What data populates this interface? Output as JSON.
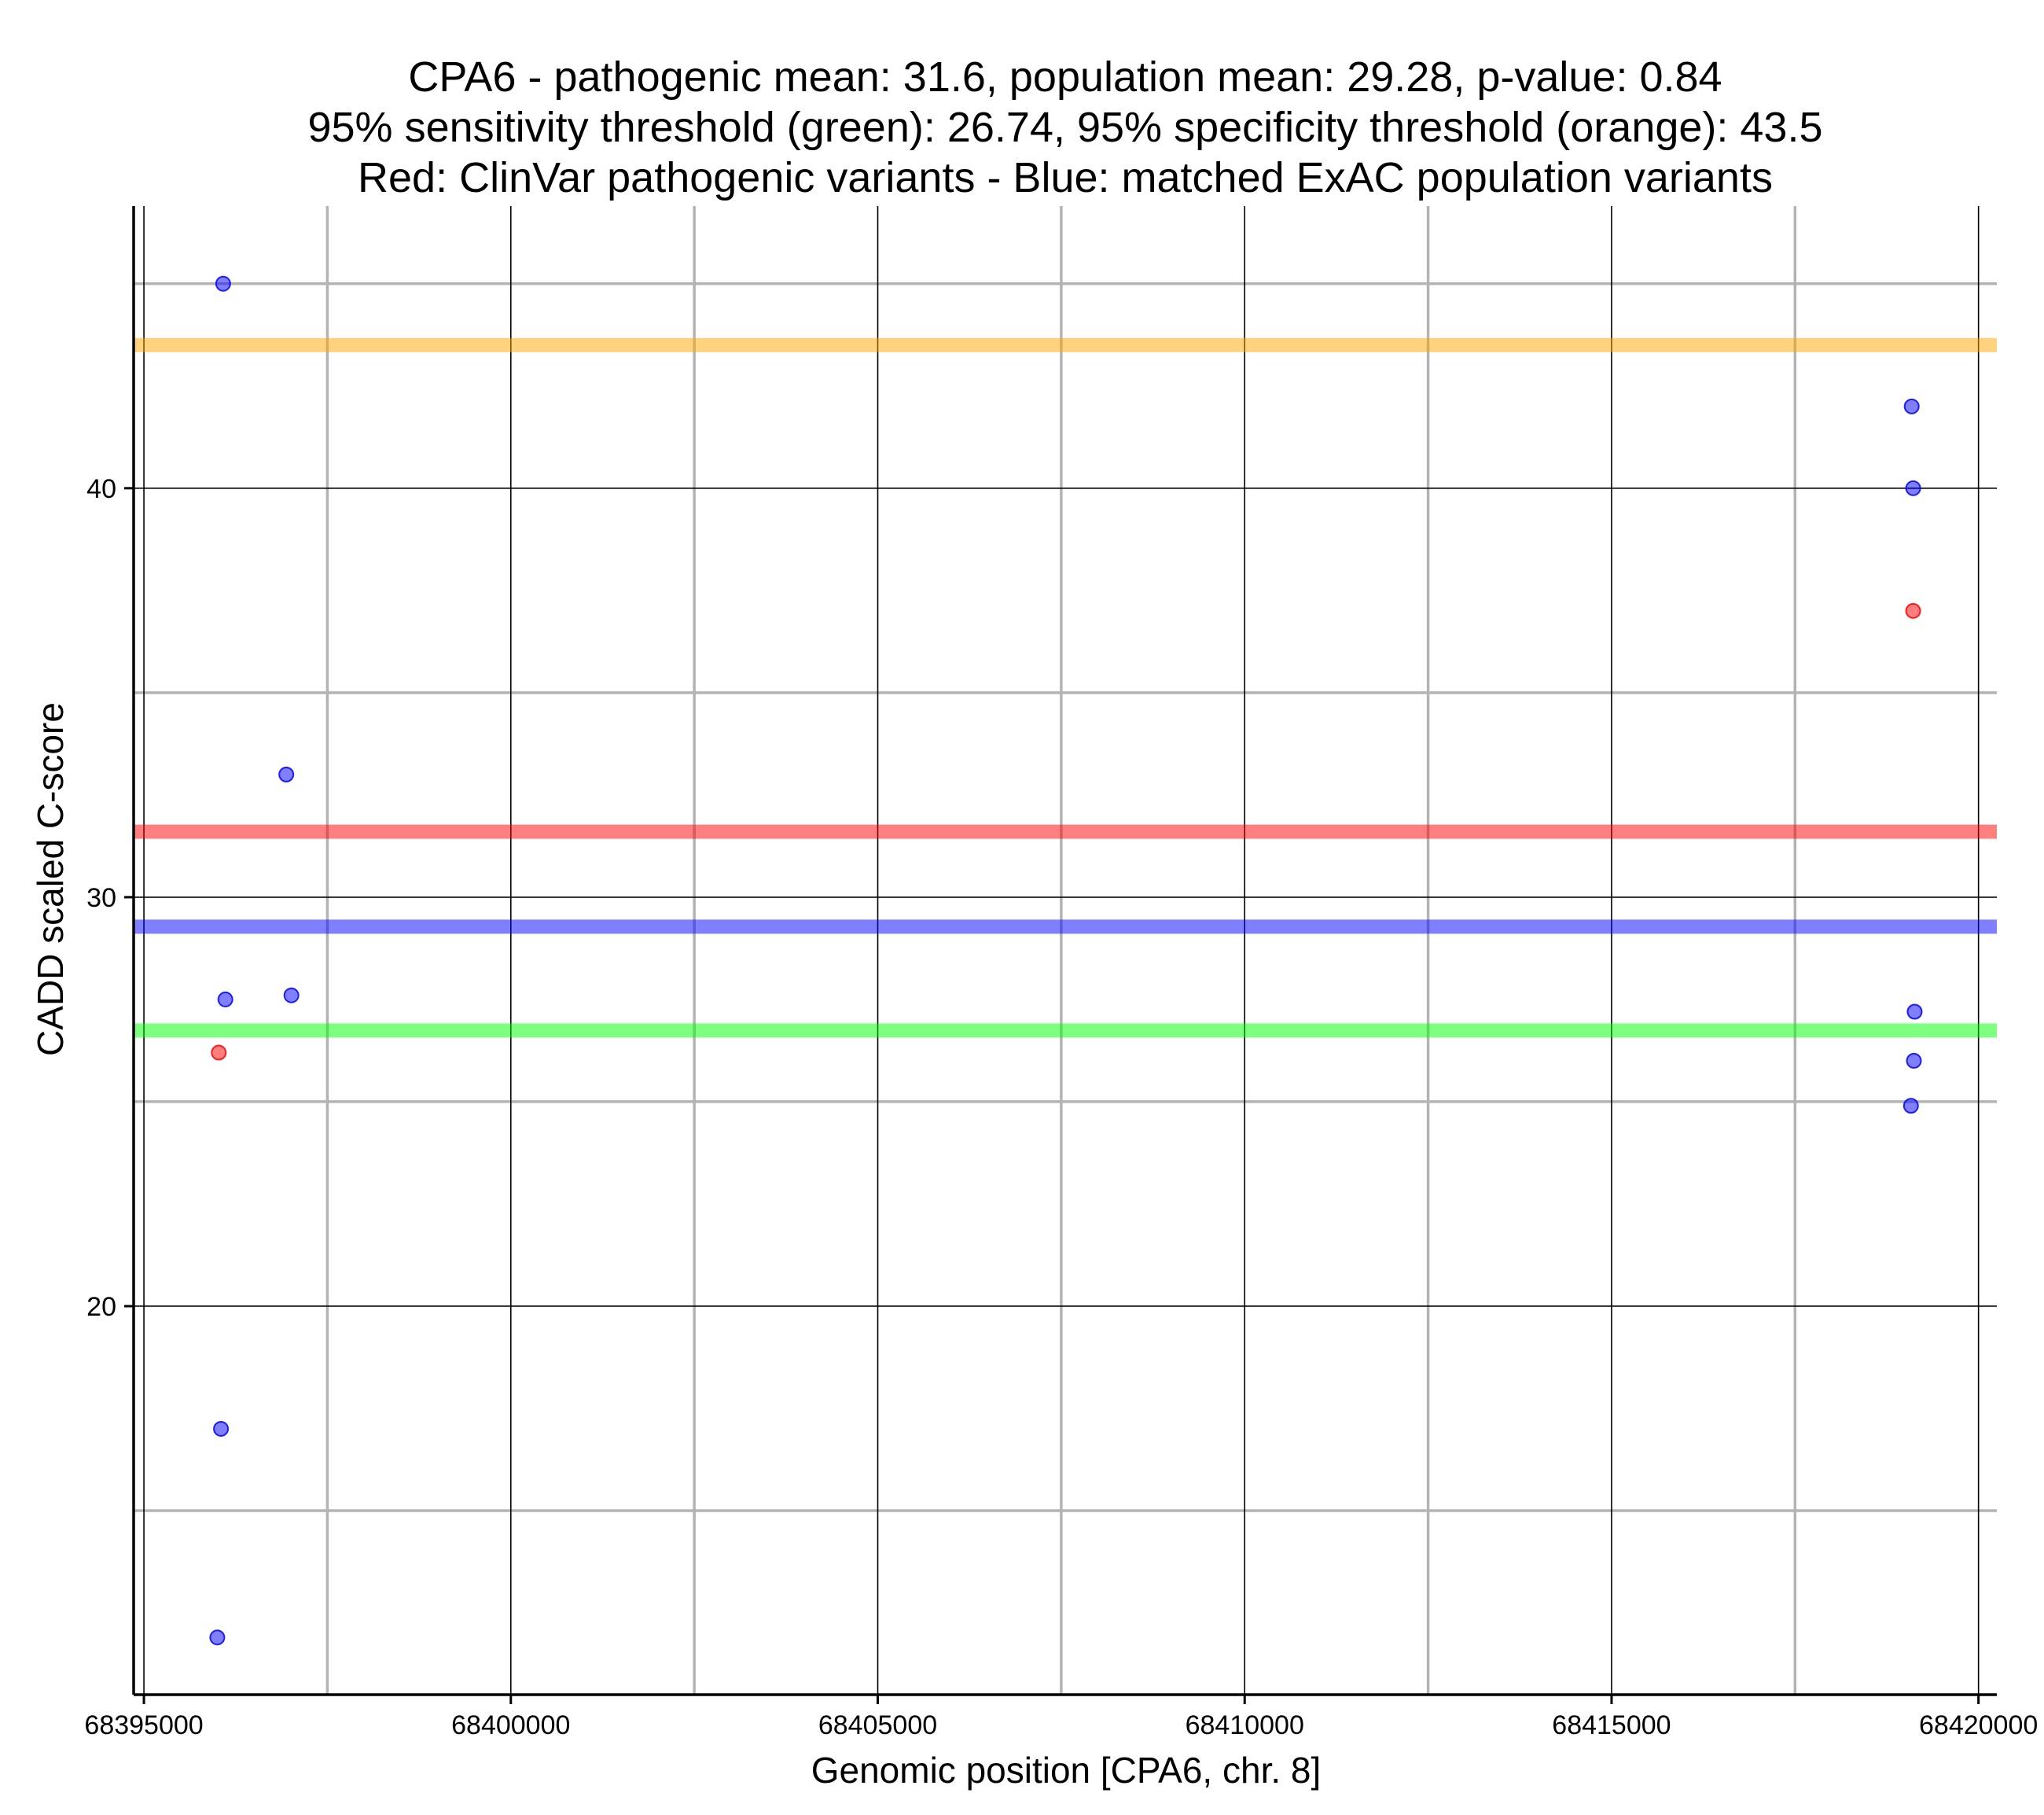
{
  "chart_data": {
    "type": "scatter",
    "title_lines": [
      "CPA6 - pathogenic mean: 31.6, population mean: 29.28, p-value: 0.84",
      "95% sensitivity threshold (green): 26.74, 95% specificity threshold (orange): 43.5",
      "Red: ClinVar pathogenic variants - Blue: matched ExAC population variants"
    ],
    "xlabel": "Genomic position [CPA6, chr. 8]",
    "ylabel": "CADD scaled C-score",
    "xlim": [
      68394860,
      68420250
    ],
    "ylim": [
      10.5,
      46.9
    ],
    "x_ticks": [
      68395000,
      68400000,
      68405000,
      68410000,
      68415000,
      68420000
    ],
    "x_tick_labels": [
      "68395000",
      "68400000",
      "68405000",
      "68410000",
      "68415000",
      "68420000"
    ],
    "x_minor_grid": [
      68397500,
      68402500,
      68407500,
      68412500,
      68417500
    ],
    "y_ticks": [
      20,
      30,
      40
    ],
    "y_tick_labels": [
      "20",
      "30",
      "40"
    ],
    "y_minor_grid": [
      15,
      25,
      35,
      45
    ],
    "hlines": [
      {
        "name": "specificity-threshold",
        "value": 43.5,
        "color": "#FFA500"
      },
      {
        "name": "pathogenic-mean",
        "value": 31.6,
        "color": "#FF0000"
      },
      {
        "name": "population-mean",
        "value": 29.28,
        "color": "#0000FF"
      },
      {
        "name": "sensitivity-threshold",
        "value": 26.74,
        "color": "#00FF00"
      }
    ],
    "series": [
      {
        "name": "ClinVar pathogenic variants",
        "color": "#FF0000",
        "points": [
          {
            "x": 68396020,
            "y": 26.2
          },
          {
            "x": 68419110,
            "y": 37.0
          }
        ]
      },
      {
        "name": "matched ExAC population variants",
        "color": "#0000FF",
        "points": [
          {
            "x": 68396080,
            "y": 45.0
          },
          {
            "x": 68396110,
            "y": 27.5
          },
          {
            "x": 68396940,
            "y": 33.0
          },
          {
            "x": 68397010,
            "y": 27.6
          },
          {
            "x": 68396050,
            "y": 17.0
          },
          {
            "x": 68396000,
            "y": 11.9
          },
          {
            "x": 68419090,
            "y": 42.0
          },
          {
            "x": 68419110,
            "y": 40.0
          },
          {
            "x": 68419130,
            "y": 27.2
          },
          {
            "x": 68419120,
            "y": 26.0
          },
          {
            "x": 68419080,
            "y": 24.9
          }
        ]
      }
    ]
  }
}
